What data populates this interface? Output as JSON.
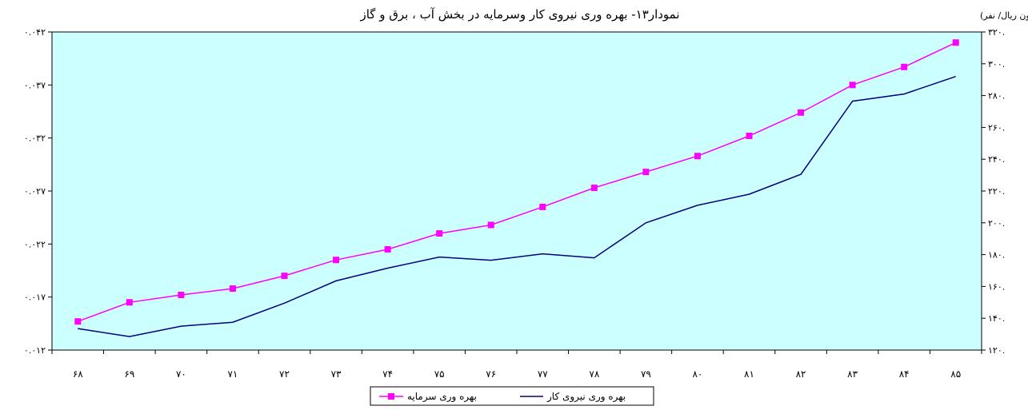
{
  "chart_data": {
    "type": "line",
    "title": "نمودار۱۳- بهره وری نیروی کار وسرمایه در  بخش آب ، برق و گاز",
    "right_axis_unit": "(میلیون ریال/ نفر)",
    "categories": [
      "۶۸",
      "۶۹",
      "۷۰",
      "۷۱",
      "۷۲",
      "۷۳",
      "۷۴",
      "۷۵",
      "۷۶",
      "۷۷",
      "۷۸",
      "۷۹",
      "۸۰",
      "۸۱",
      "۸۲",
      "۸۳",
      "۸۴",
      "۸۵"
    ],
    "left_axis": {
      "ylim": [
        0.012,
        0.042
      ],
      "ticks": [
        0.012,
        0.017,
        0.022,
        0.027,
        0.032,
        0.037,
        0.042
      ],
      "tick_labels": [
        "۰.۰۱۲",
        "۰.۰۱۷",
        "۰.۰۲۲",
        "۰.۰۲۷",
        "۰.۰۳۲",
        "۰.۰۳۷",
        "۰.۰۴۲"
      ]
    },
    "right_axis": {
      "ylim": [
        120,
        320
      ],
      "ticks": [
        120,
        140,
        160,
        180,
        200,
        220,
        240,
        260,
        280,
        300,
        320
      ],
      "tick_labels": [
        "۱۲۰.",
        "۱۴۰.",
        "۱۶۰.",
        "۱۸۰.",
        "۲۰۰.",
        "۲۲۰.",
        "۲۴۰.",
        "۲۶۰.",
        "۲۸۰.",
        "۳۰۰.",
        "۳۲۰."
      ]
    },
    "series": [
      {
        "name": "بهره وری سرمایه",
        "axis": "left",
        "color": "#FF00FF",
        "marker": "square",
        "values": [
          0.0147,
          0.0165,
          0.0172,
          0.0178,
          0.019,
          0.0205,
          0.0215,
          0.023,
          0.0238,
          0.0255,
          0.0273,
          0.0288,
          0.0303,
          0.0322,
          0.0344,
          0.037,
          0.0387,
          0.041
        ]
      },
      {
        "name": "بهره وری نیروی  کار",
        "axis": "right",
        "color": "#000080",
        "marker": "none",
        "values": [
          133.5,
          128.5,
          135,
          137.5,
          149.5,
          163.5,
          171.5,
          178.5,
          176.5,
          180.5,
          178,
          200,
          211,
          218,
          230.5,
          276.5,
          281,
          292
        ]
      }
    ],
    "plot_background": "#CCFFFF",
    "grid": false,
    "legend_position": "bottom-center"
  }
}
